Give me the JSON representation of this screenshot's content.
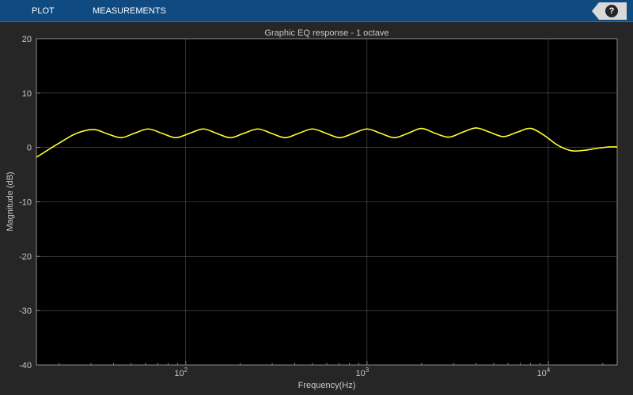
{
  "toolstrip": {
    "tabs": [
      {
        "label": "PLOT"
      },
      {
        "label": "MEASUREMENTS"
      }
    ],
    "help_icon": "question-mark-icon",
    "help_label": "?"
  },
  "colors": {
    "toolstrip": "#0f4a80",
    "figure_bg": "#262626",
    "axes_bg": "#000000",
    "grid": "#5a5a5a",
    "text": "#c8c8c8",
    "trace": "#ffff33"
  },
  "chart_data": {
    "type": "line",
    "title": "Graphic EQ response - 1 octave",
    "xlabel": "Frequency(Hz)",
    "ylabel": "Magnitude (dB)",
    "xscale": "log",
    "xlim": [
      15,
      24000
    ],
    "ylim": [
      -40,
      20
    ],
    "grid": true,
    "x_ticks": [
      {
        "value": 100,
        "base": "10",
        "exp": "2"
      },
      {
        "value": 1000,
        "base": "10",
        "exp": "3"
      },
      {
        "value": 10000,
        "base": "10",
        "exp": "4"
      }
    ],
    "y_ticks": [
      20,
      10,
      0,
      -10,
      -20,
      -30,
      -40
    ],
    "series": [
      {
        "x": [
          15,
          20,
          25,
          31,
          37,
          44,
          52,
          62,
          74,
          88,
          105,
          125,
          148,
          176,
          209,
          250,
          297,
          354,
          420,
          500,
          595,
          707,
          841,
          1000,
          1190,
          1414,
          1682,
          2000,
          2380,
          2828,
          3364,
          4000,
          4760,
          5656,
          6728,
          8000,
          9520,
          11300,
          13450,
          16000,
          19000,
          22000,
          24000
        ],
        "y": [
          -1.8,
          0.8,
          2.6,
          3.3,
          2.5,
          1.8,
          2.6,
          3.4,
          2.6,
          1.8,
          2.6,
          3.4,
          2.6,
          1.8,
          2.6,
          3.4,
          2.6,
          1.8,
          2.6,
          3.4,
          2.6,
          1.8,
          2.6,
          3.4,
          2.6,
          1.8,
          2.6,
          3.5,
          2.6,
          1.9,
          2.8,
          3.6,
          2.8,
          2.0,
          2.8,
          3.5,
          2.2,
          0.4,
          -0.6,
          -0.5,
          -0.1,
          0.1,
          0.1
        ]
      }
    ]
  }
}
